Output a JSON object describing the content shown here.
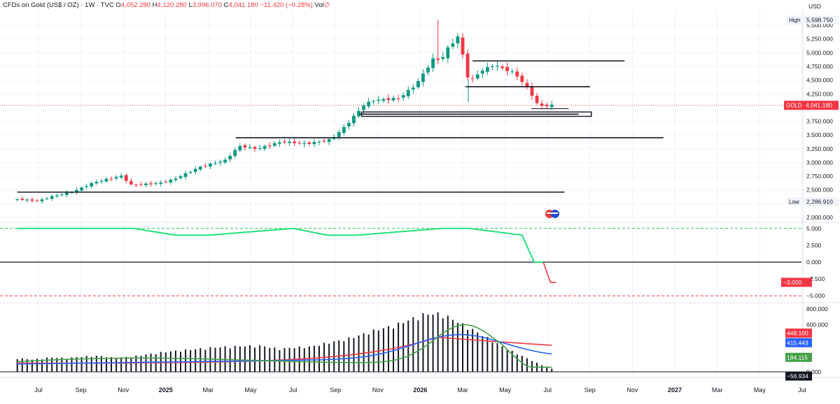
{
  "header": {
    "symbol_title": "CFDs on Gold (US$ / OZ) · 1W · TVC",
    "open_label": "O",
    "open": "4,052.280",
    "high_label": "H",
    "high": "4,120.280",
    "low_label": "L",
    "low": "3,996.070",
    "close_label": "C",
    "close": "4,041.180",
    "change": "−11.420 (−0.28%)",
    "vol_label": "Vol",
    "vol": "∅"
  },
  "price_axis": {
    "currency": "USD",
    "ticks": [
      "2,000.000",
      "2,250.000",
      "2,500.000",
      "2,750.000",
      "3,000.000",
      "3,250.000",
      "3,500.000",
      "3,750.000",
      "4,250.000",
      "4,500.000",
      "4,750.000",
      "5,000.000",
      "5,250.000",
      "5,500.000"
    ],
    "high_label": "High",
    "high_value": "5,598.750",
    "low_label": "Low",
    "low_value": "2,286.910",
    "last_label": "GOLD",
    "last_value": "4,041.180"
  },
  "osc_axis": {
    "ticks": [
      "5.000",
      "2.500",
      "0.000",
      "−2.500",
      "−5.000"
    ],
    "last_value": "−3.000"
  },
  "vol_axis": {
    "ticks": [
      "800.000",
      "600.000",
      "0.000"
    ],
    "badges": [
      {
        "value": "448.100",
        "color": "#f23645"
      },
      {
        "value": "415.443",
        "color": "#2962ff"
      },
      {
        "value": "184.115",
        "color": "#43a047"
      },
      {
        "value": "−56.934",
        "color": "#131722"
      }
    ]
  },
  "time_axis": {
    "labels": [
      "Jul",
      "Sep",
      "Nov",
      "2025",
      "Mar",
      "May",
      "Jul",
      "Sep",
      "Nov",
      "2026",
      "Mar",
      "May",
      "Jul",
      "Sep",
      "Nov",
      "2027",
      "Mar",
      "May",
      "Jul"
    ],
    "bold": [
      "2025",
      "2026",
      "2027"
    ]
  },
  "colors": {
    "up": "#089981",
    "down": "#f23645",
    "osc": "#22e07a",
    "blue": "#2962ff",
    "green": "#43a047",
    "red": "#f23645",
    "grid": "#f0f3fa"
  },
  "chart_data": [
    {
      "type": "candlestick",
      "title": "CFDs on Gold (US$ / OZ) · 1W · TVC",
      "ylabel": "USD",
      "ylim": [
        1950,
        5650
      ],
      "x_range_months": [
        "2024-06",
        "2027-08"
      ],
      "candles_weekly_close_approx": [
        {
          "date": "2024-06-03",
          "o": 2330,
          "h": 2390,
          "l": 2290,
          "c": 2300
        },
        {
          "date": "2024-07-01",
          "o": 2330,
          "h": 2480,
          "l": 2320,
          "c": 2410
        },
        {
          "date": "2024-09-02",
          "o": 2500,
          "h": 2680,
          "l": 2480,
          "c": 2650
        },
        {
          "date": "2024-10-28",
          "o": 2740,
          "h": 2790,
          "l": 2640,
          "c": 2700
        },
        {
          "date": "2024-11-04",
          "o": 2700,
          "h": 2720,
          "l": 2540,
          "c": 2560
        },
        {
          "date": "2024-12-30",
          "o": 2620,
          "h": 2700,
          "l": 2600,
          "c": 2690
        },
        {
          "date": "2025-02-17",
          "o": 2880,
          "h": 2950,
          "l": 2860,
          "c": 2930
        },
        {
          "date": "2025-04-07",
          "o": 3050,
          "h": 3250,
          "l": 2970,
          "c": 3240
        },
        {
          "date": "2025-04-21",
          "o": 3320,
          "h": 3500,
          "l": 3270,
          "c": 3310
        },
        {
          "date": "2025-06-09",
          "o": 3300,
          "h": 3450,
          "l": 3300,
          "c": 3430
        },
        {
          "date": "2025-08-25",
          "o": 3440,
          "h": 3480,
          "l": 3390,
          "c": 3470
        },
        {
          "date": "2025-10-13",
          "o": 4010,
          "h": 4380,
          "l": 3960,
          "c": 4250
        },
        {
          "date": "2025-10-20",
          "o": 4250,
          "h": 4380,
          "l": 4000,
          "c": 4110
        },
        {
          "date": "2025-12-22",
          "o": 4400,
          "h": 4530,
          "l": 4330,
          "c": 4500
        },
        {
          "date": "2026-01-26",
          "o": 4960,
          "h": 5598.75,
          "l": 4900,
          "c": 5150
        },
        {
          "date": "2026-02-16",
          "o": 5280,
          "h": 5420,
          "l": 5200,
          "c": 5300
        },
        {
          "date": "2026-03-09",
          "o": 4950,
          "h": 5000,
          "l": 4100,
          "c": 4440
        },
        {
          "date": "2026-04-13",
          "o": 4700,
          "h": 4880,
          "l": 4640,
          "c": 4800
        },
        {
          "date": "2026-06-08",
          "o": 4320,
          "h": 4350,
          "l": 4000,
          "c": 4010
        },
        {
          "date": "2026-07-13",
          "o": 4052.28,
          "h": 4120.28,
          "l": 3996.07,
          "c": 4041.18
        }
      ],
      "horizontal_levels": [
        4850,
        4380,
        3880,
        3450,
        2460
      ],
      "last_price": 4041.18,
      "high": 5598.75,
      "low": 2286.91
    },
    {
      "type": "line",
      "ylim": [
        -6,
        6
      ],
      "reference_lines": [
        5,
        0,
        -5
      ],
      "series": [
        {
          "x": [
            "2024-06",
            "2024-11-15",
            "2025-01-15",
            "2025-03-01",
            "2025-07-01",
            "2025-08-20",
            "2025-10-01",
            "2026-02-01",
            "2026-03-10",
            "2026-05-25",
            "2026-06-12",
            "2026-06-25",
            "2026-07-13"
          ],
          "values": [
            5,
            5,
            4,
            4,
            5,
            4,
            4,
            5,
            5,
            4,
            0,
            0,
            -3
          ]
        }
      ],
      "last_value": -3.0
    },
    {
      "type": "bar",
      "ylim": [
        -60,
        850
      ],
      "series": [
        {
          "name": "",
          "values_monthly_approx": [
            180,
            160,
            190,
            180,
            200,
            210,
            180,
            200,
            230,
            260,
            280,
            300,
            320,
            330,
            340,
            340,
            300,
            320,
            330,
            380,
            420,
            480,
            550,
            600,
            680,
            760,
            760,
            650,
            540,
            420,
            300,
            200,
            100,
            20
          ]
        },
        {
          "name": "",
          "color": "#43a047",
          "last": 184.115
        },
        {
          "name": "",
          "color": "#2962ff",
          "last": 415.443
        },
        {
          "name": "",
          "color": "#f23645",
          "last": 448.1
        }
      ],
      "last_bar_value": -56.934
    }
  ]
}
